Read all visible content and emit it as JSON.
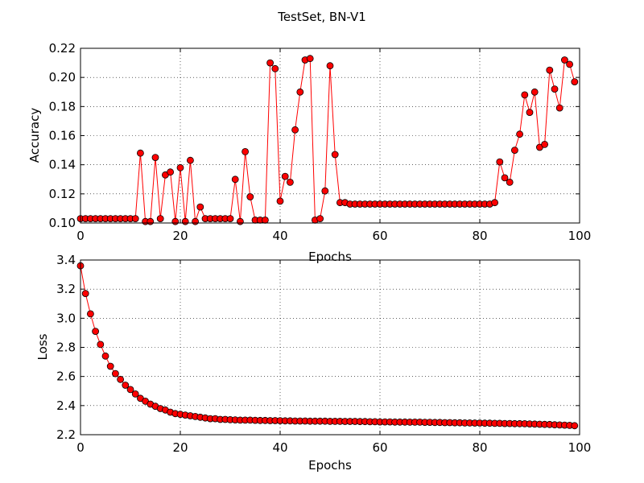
{
  "figure": {
    "title": "TestSet, BN-V1",
    "marker_color": "#ff0000",
    "line_color": "#ff0000",
    "marker_edge_color": "#000000"
  },
  "chart_data": [
    {
      "type": "line",
      "title": "",
      "xlabel": "Epochs",
      "ylabel": "Accuracy",
      "xlim": [
        0,
        100
      ],
      "ylim": [
        0.1,
        0.22
      ],
      "grid": true,
      "x_ticks": [
        0,
        20,
        40,
        60,
        80,
        100
      ],
      "x_tick_labels": [
        "0",
        "20",
        "40",
        "60",
        "80",
        "100"
      ],
      "y_ticks": [
        0.1,
        0.12,
        0.14,
        0.16,
        0.18,
        0.2,
        0.22
      ],
      "y_tick_labels": [
        "0.10",
        "0.12",
        "0.14",
        "0.16",
        "0.18",
        "0.20",
        "0.22"
      ],
      "series": [
        {
          "color": "#ff0000",
          "marker": "circle",
          "x": [
            0,
            1,
            2,
            3,
            4,
            5,
            6,
            7,
            8,
            9,
            10,
            11,
            12,
            13,
            14,
            15,
            16,
            17,
            18,
            19,
            20,
            21,
            22,
            23,
            24,
            25,
            26,
            27,
            28,
            29,
            30,
            31,
            32,
            33,
            34,
            35,
            36,
            37,
            38,
            39,
            40,
            41,
            42,
            43,
            44,
            45,
            46,
            47,
            48,
            49,
            50,
            51,
            52,
            53,
            54,
            55,
            56,
            57,
            58,
            59,
            60,
            61,
            62,
            63,
            64,
            65,
            66,
            67,
            68,
            69,
            70,
            71,
            72,
            73,
            74,
            75,
            76,
            77,
            78,
            79,
            80,
            81,
            82,
            83,
            84,
            85,
            86,
            87,
            88,
            89,
            90,
            91,
            92,
            93,
            94,
            95,
            96,
            97,
            98,
            99
          ],
          "values": [
            0.103,
            0.103,
            0.103,
            0.103,
            0.103,
            0.103,
            0.103,
            0.103,
            0.103,
            0.103,
            0.103,
            0.103,
            0.148,
            0.101,
            0.101,
            0.145,
            0.103,
            0.133,
            0.135,
            0.101,
            0.138,
            0.101,
            0.143,
            0.101,
            0.111,
            0.103,
            0.103,
            0.103,
            0.103,
            0.103,
            0.103,
            0.13,
            0.101,
            0.149,
            0.118,
            0.102,
            0.102,
            0.102,
            0.21,
            0.206,
            0.115,
            0.132,
            0.128,
            0.164,
            0.19,
            0.212,
            0.213,
            0.102,
            0.103,
            0.122,
            0.208,
            0.147,
            0.114,
            0.114,
            0.113,
            0.113,
            0.113,
            0.113,
            0.113,
            0.113,
            0.113,
            0.113,
            0.113,
            0.113,
            0.113,
            0.113,
            0.113,
            0.113,
            0.113,
            0.113,
            0.113,
            0.113,
            0.113,
            0.113,
            0.113,
            0.113,
            0.113,
            0.113,
            0.113,
            0.113,
            0.113,
            0.113,
            0.113,
            0.114,
            0.142,
            0.131,
            0.128,
            0.15,
            0.161,
            0.188,
            0.176,
            0.19,
            0.152,
            0.154,
            0.205,
            0.192,
            0.179,
            0.212,
            0.209,
            0.197
          ]
        }
      ]
    },
    {
      "type": "line",
      "title": "",
      "xlabel": "Epochs",
      "ylabel": "Loss",
      "xlim": [
        0,
        100
      ],
      "ylim": [
        2.2,
        3.4
      ],
      "grid": true,
      "x_ticks": [
        0,
        20,
        40,
        60,
        80,
        100
      ],
      "x_tick_labels": [
        "0",
        "20",
        "40",
        "60",
        "80",
        "100"
      ],
      "y_ticks": [
        2.2,
        2.4,
        2.6,
        2.8,
        3.0,
        3.2,
        3.4
      ],
      "y_tick_labels": [
        "2.2",
        "2.4",
        "2.6",
        "2.8",
        "3.0",
        "3.2",
        "3.4"
      ],
      "series": [
        {
          "color": "#ff0000",
          "marker": "circle",
          "x": [
            0,
            1,
            2,
            3,
            4,
            5,
            6,
            7,
            8,
            9,
            10,
            11,
            12,
            13,
            14,
            15,
            16,
            17,
            18,
            19,
            20,
            21,
            22,
            23,
            24,
            25,
            26,
            27,
            28,
            29,
            30,
            31,
            32,
            33,
            34,
            35,
            36,
            37,
            38,
            39,
            40,
            41,
            42,
            43,
            44,
            45,
            46,
            47,
            48,
            49,
            50,
            51,
            52,
            53,
            54,
            55,
            56,
            57,
            58,
            59,
            60,
            61,
            62,
            63,
            64,
            65,
            66,
            67,
            68,
            69,
            70,
            71,
            72,
            73,
            74,
            75,
            76,
            77,
            78,
            79,
            80,
            81,
            82,
            83,
            84,
            85,
            86,
            87,
            88,
            89,
            90,
            91,
            92,
            93,
            94,
            95,
            96,
            97,
            98,
            99
          ],
          "values": [
            3.36,
            3.17,
            3.03,
            2.91,
            2.82,
            2.74,
            2.67,
            2.62,
            2.58,
            2.54,
            2.51,
            2.48,
            2.45,
            2.43,
            2.41,
            2.395,
            2.38,
            2.37,
            2.355,
            2.345,
            2.34,
            2.335,
            2.33,
            2.325,
            2.32,
            2.315,
            2.31,
            2.31,
            2.305,
            2.305,
            2.303,
            2.302,
            2.3,
            2.3,
            2.3,
            2.299,
            2.298,
            2.298,
            2.297,
            2.297,
            2.296,
            2.295,
            2.295,
            2.294,
            2.294,
            2.294,
            2.293,
            2.293,
            2.293,
            2.293,
            2.292,
            2.292,
            2.292,
            2.291,
            2.291,
            2.291,
            2.29,
            2.29,
            2.289,
            2.289,
            2.288,
            2.288,
            2.288,
            2.287,
            2.287,
            2.287,
            2.286,
            2.286,
            2.286,
            2.285,
            2.285,
            2.284,
            2.284,
            2.283,
            2.283,
            2.282,
            2.282,
            2.281,
            2.281,
            2.28,
            2.28,
            2.279,
            2.279,
            2.278,
            2.278,
            2.277,
            2.277,
            2.276,
            2.276,
            2.275,
            2.274,
            2.273,
            2.272,
            2.271,
            2.27,
            2.268,
            2.267,
            2.266,
            2.264,
            2.262
          ]
        }
      ]
    }
  ]
}
